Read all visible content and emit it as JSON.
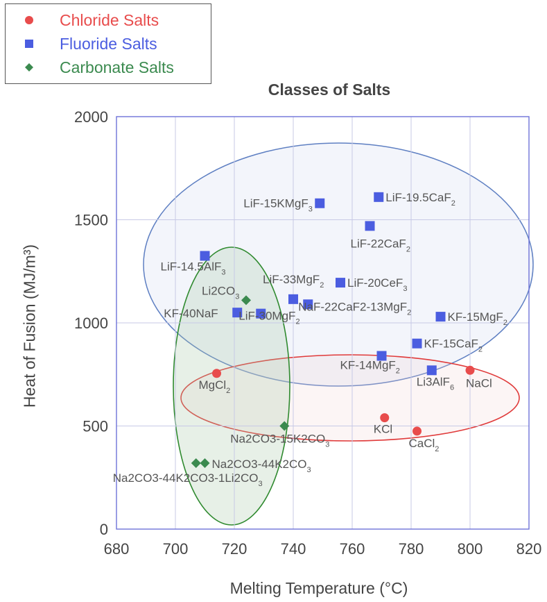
{
  "chart_data": {
    "type": "scatter",
    "title": "Classes of Salts",
    "xlabel": "Melting Temperature (°C)",
    "ylabel": "Heat of Fusion (MJ/m³)",
    "xlim": [
      680,
      820
    ],
    "ylim": [
      0,
      2000
    ],
    "xticks": [
      680,
      700,
      720,
      740,
      760,
      780,
      800,
      820
    ],
    "yticks": [
      0,
      500,
      1000,
      1500,
      2000
    ],
    "grid": true,
    "legend_position": "top-left",
    "series": [
      {
        "name": "Chloride Salts",
        "color": "#e84c4c",
        "marker": "circle",
        "points": [
          {
            "x": 714,
            "y": 755,
            "label": "MgCl",
            "sub": "2"
          },
          {
            "x": 771,
            "y": 540,
            "label": "KCl",
            "sub": ""
          },
          {
            "x": 782,
            "y": 475,
            "label": "CaCl",
            "sub": "2"
          },
          {
            "x": 800,
            "y": 770,
            "label": "NaCl",
            "sub": ""
          }
        ]
      },
      {
        "name": "Fluoride Salts",
        "color": "#4b5de0",
        "marker": "square",
        "points": [
          {
            "x": 710,
            "y": 1325,
            "label": "LiF-14.5AlF",
            "sub": "3"
          },
          {
            "x": 721,
            "y": 1050,
            "label": "KF-40NaF",
            "sub": ""
          },
          {
            "x": 729,
            "y": 1045,
            "label": "LiF-30MgF",
            "sub": "2"
          },
          {
            "x": 740,
            "y": 1115,
            "label": "LiF-33MgF",
            "sub": "2"
          },
          {
            "x": 745,
            "y": 1090,
            "label": "NaF-22CaF2-13MgF",
            "sub": "2"
          },
          {
            "x": 749,
            "y": 1580,
            "label": "LiF-15KMgF",
            "sub": "3"
          },
          {
            "x": 756,
            "y": 1195,
            "label": "LiF-20CeF",
            "sub": "3"
          },
          {
            "x": 766,
            "y": 1470,
            "label": "LiF-22CaF",
            "sub": "2"
          },
          {
            "x": 769,
            "y": 1610,
            "label": "LiF-19.5CaF",
            "sub": "2"
          },
          {
            "x": 770,
            "y": 840,
            "label": "KF-14MgF",
            "sub": "2"
          },
          {
            "x": 782,
            "y": 900,
            "label": "KF-15CaF",
            "sub": "2"
          },
          {
            "x": 787,
            "y": 770,
            "label": "Li3AlF",
            "sub": "6"
          },
          {
            "x": 790,
            "y": 1030,
            "label": "KF-15MgF",
            "sub": "2"
          }
        ]
      },
      {
        "name": "Carbonate Salts",
        "color": "#3b8a4f",
        "marker": "diamond",
        "points": [
          {
            "x": 724,
            "y": 1110,
            "label": "Li2CO",
            "sub": "3"
          },
          {
            "x": 737,
            "y": 500,
            "label": "Na2CO3-15K2CO",
            "sub": "3"
          },
          {
            "x": 707,
            "y": 320,
            "label": "Na2CO3-44K2CO3-1Li2CO",
            "sub": "3"
          },
          {
            "x": 710,
            "y": 320,
            "label": "Na2CO3-44K2CO",
            "sub": "3"
          }
        ]
      }
    ]
  }
}
